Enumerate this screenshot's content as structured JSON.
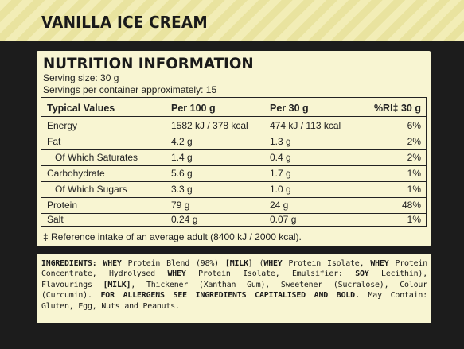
{
  "banner": {
    "title": "VANILLA ICE CREAM"
  },
  "nutrition": {
    "title": "NUTRITION INFORMATION",
    "serving_size": "Serving size: 30 g",
    "servings_per_container": "Servings per container approximately: 15",
    "columns": [
      "Typical Values",
      "Per 100 g",
      "Per 30 g",
      "%RI‡ 30 g"
    ],
    "rows": [
      {
        "name": "Energy",
        "per100": "1582 kJ / 378 kcal",
        "per30": "474 kJ / 113 kcal",
        "ri": "6%"
      },
      {
        "name": "Fat",
        "per100": "4.2 g",
        "per30": "1.3 g",
        "ri": "2%"
      },
      {
        "name": "Of Which Saturates",
        "per100": "1.4 g",
        "per30": "0.4 g",
        "ri": "2%"
      },
      {
        "name": "Carbohydrate",
        "per100": "5.6 g",
        "per30": "1.7 g",
        "ri": "1%"
      },
      {
        "name": "Of Which Sugars",
        "per100": "3.3 g",
        "per30": "1.0 g",
        "ri": "1%"
      },
      {
        "name": "Protein",
        "per100": "79 g",
        "per30": "24 g",
        "ri": "48%"
      },
      {
        "name": "Salt",
        "per100": "0.24 g",
        "per30": "0.07 g",
        "ri": "1%"
      }
    ],
    "footnote": "‡ Reference intake of an average adult (8400 kJ / 2000 kcal)."
  },
  "ingredients": {
    "label": "INGREDIENTS:",
    "segments": [
      {
        "text": "WHEY",
        "bold": true
      },
      {
        "text": " Protein Blend (98%) ",
        "bold": false
      },
      {
        "text": "[MILK]",
        "bold": true
      },
      {
        "text": " (",
        "bold": false
      },
      {
        "text": "WHEY",
        "bold": true
      },
      {
        "text": " Protein Isolate, ",
        "bold": false
      },
      {
        "text": "WHEY",
        "bold": true
      },
      {
        "text": " Protein Concentrate, Hydrolysed ",
        "bold": false
      },
      {
        "text": "WHEY",
        "bold": true
      },
      {
        "text": " Protein Isolate, Emulsifier: ",
        "bold": false
      },
      {
        "text": "SOY",
        "bold": true
      },
      {
        "text": " Lecithin), Flavourings ",
        "bold": false
      },
      {
        "text": "[MILK]",
        "bold": true
      },
      {
        "text": ", Thickener (Xanthan Gum), Sweetener (Sucralose), Colour (Curcumin). ",
        "bold": false
      },
      {
        "text": "FOR ALLERGENS SEE INGREDIENTS CAPITALISED AND BOLD.",
        "bold": true
      },
      {
        "text": " May Contain: Gluten, Egg, Nuts and Peanuts.",
        "bold": false
      }
    ]
  }
}
